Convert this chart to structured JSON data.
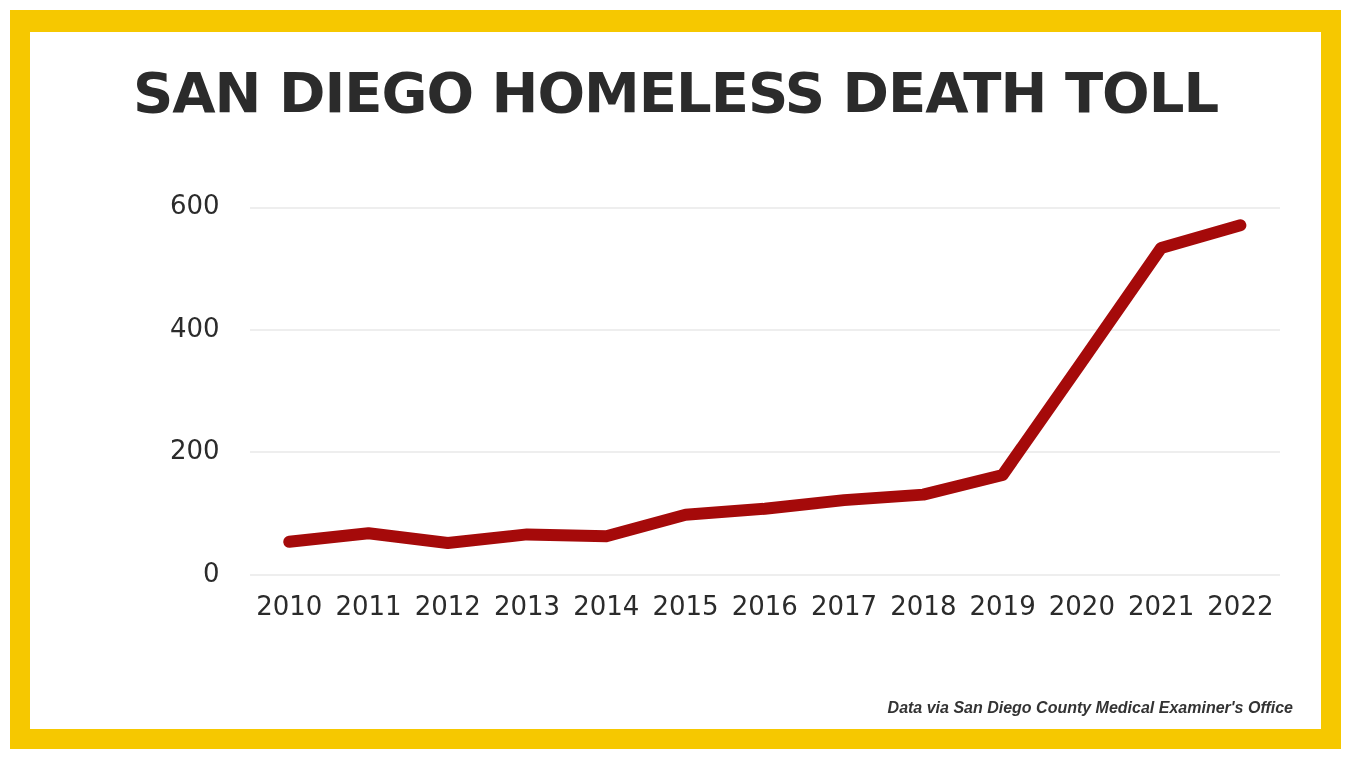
{
  "chart_data": {
    "type": "line",
    "title": "SAN DIEGO HOMELESS DEATH TOLL",
    "categories": [
      "2010",
      "2011",
      "2012",
      "2013",
      "2014",
      "2015",
      "2016",
      "2017",
      "2018",
      "2019",
      "2020",
      "2021",
      "2022"
    ],
    "series": [
      {
        "color": "#a50a0a",
        "values": [
          54,
          68,
          52,
          66,
          63,
          98,
          108,
          122,
          131,
          163,
          348,
          534,
          571
        ]
      }
    ],
    "ylim": [
      0,
      600
    ],
    "yticks": [
      0,
      200,
      400,
      600
    ],
    "grid": "y",
    "legend": false,
    "marker": "none",
    "line_style": "solid",
    "annotations": [
      "Data via San Diego County Medical Examiner's Office"
    ]
  }
}
